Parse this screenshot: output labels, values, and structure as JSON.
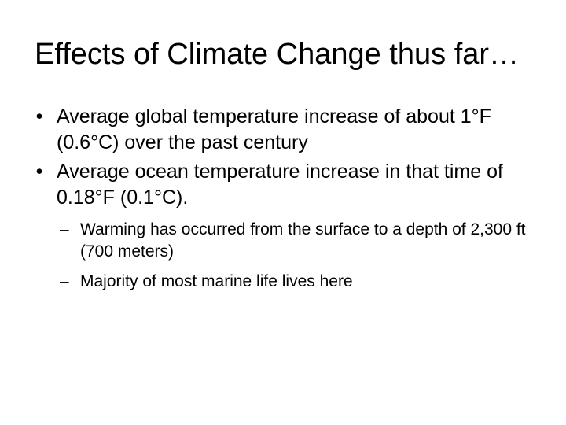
{
  "slide": {
    "title": "Effects of Climate Change thus far…",
    "bullet_marker": "•",
    "sub_bullet_marker": "–",
    "bullets": [
      "Average global temperature increase of about 1°F (0.6°C) over the past century",
      "Average ocean temperature increase in that time of 0.18°F (0.1°C)."
    ],
    "sub_bullets": [
      "Warming has occurred from the surface to a depth of 2,300 ft (700 meters)",
      "Majority of most marine life lives here"
    ]
  }
}
